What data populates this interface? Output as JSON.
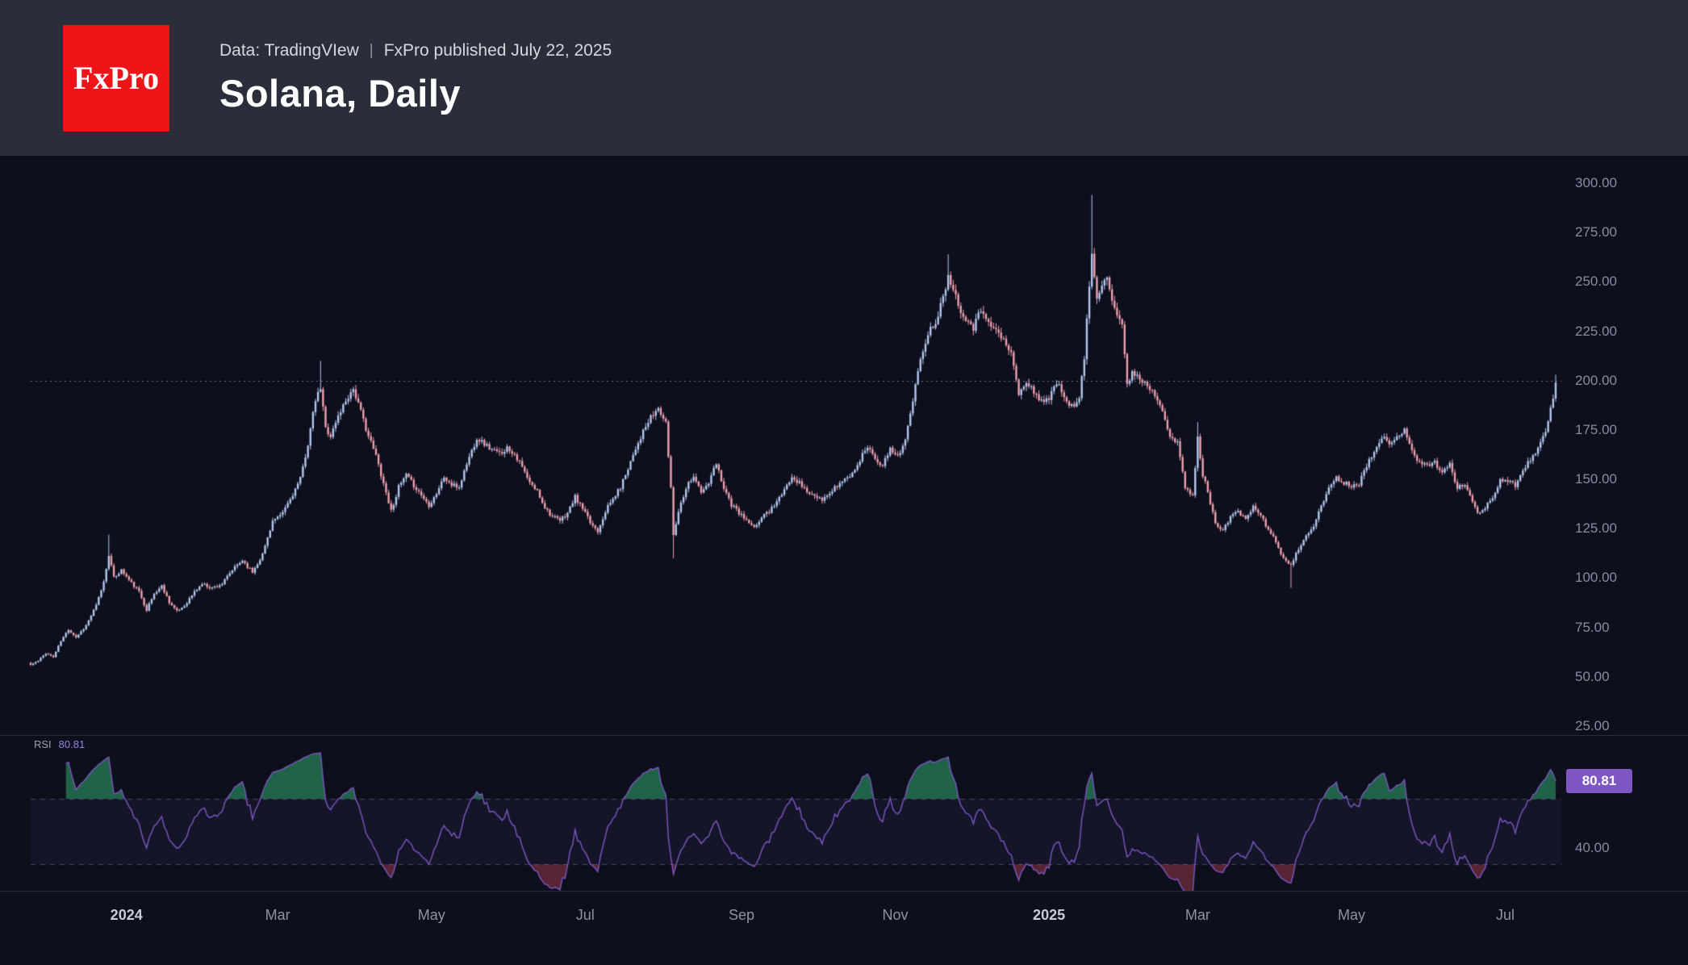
{
  "header": {
    "logo_text": "FxPro",
    "source": "Data: TradingVIew",
    "divider": "|",
    "published": "FxPro published July 22, 2025",
    "title": "Solana, Daily"
  },
  "colors": {
    "background": "#0d0f1c",
    "header_bg": "#2a2e3b",
    "logo_bg": "#f01419",
    "candle_up": "#b4c7ef",
    "candle_down": "#ef9fae",
    "rsi_line": "#7e57c2",
    "rsi_badge_bg": "#7e57c2",
    "axis_text": "#868da0",
    "current_price_line": "#94a0c4",
    "overbought_fill": "#32aa6e",
    "oversold_fill": "#e65064",
    "band_fill": "#7c62d4",
    "band_line": "#6e7494"
  },
  "price_axis": {
    "current_price_line_value": 200,
    "ticks": [
      {
        "label": "300.00",
        "value": 300
      },
      {
        "label": "275.00",
        "value": 275
      },
      {
        "label": "250.00",
        "value": 250
      },
      {
        "label": "225.00",
        "value": 225
      },
      {
        "label": "200.00",
        "value": 200
      },
      {
        "label": "175.00",
        "value": 175
      },
      {
        "label": "150.00",
        "value": 150
      },
      {
        "label": "125.00",
        "value": 125
      },
      {
        "label": "100.00",
        "value": 100
      },
      {
        "label": "75.00",
        "value": 75
      },
      {
        "label": "50.00",
        "value": 50
      },
      {
        "label": "25.00",
        "value": 25
      }
    ]
  },
  "time_axis": {
    "labels": [
      {
        "label": "2024",
        "day": 38,
        "year": true
      },
      {
        "label": "Mar",
        "day": 98,
        "year": false
      },
      {
        "label": "May",
        "day": 159,
        "year": false
      },
      {
        "label": "Jul",
        "day": 220,
        "year": false
      },
      {
        "label": "Sep",
        "day": 282,
        "year": false
      },
      {
        "label": "Nov",
        "day": 343,
        "year": false
      },
      {
        "label": "2025",
        "day": 404,
        "year": true
      },
      {
        "label": "Mar",
        "day": 463,
        "year": false
      },
      {
        "label": "May",
        "day": 524,
        "year": false
      },
      {
        "label": "Jul",
        "day": 585,
        "year": false
      }
    ]
  },
  "chart_data": {
    "type": "candlestick",
    "title": "Solana, Daily",
    "symbol": "Solana",
    "timeframe": "Daily",
    "x_unit": "days from first visible candle (day 38 = Jan 1 2024)",
    "days_visible": 606,
    "ylim": [
      20,
      314
    ],
    "grid": false,
    "legend_position": "none",
    "close_anchors": [
      [
        0,
        56
      ],
      [
        3,
        58
      ],
      [
        6,
        62
      ],
      [
        9,
        60
      ],
      [
        12,
        68
      ],
      [
        15,
        74
      ],
      [
        18,
        70
      ],
      [
        22,
        76
      ],
      [
        26,
        86
      ],
      [
        29,
        98
      ],
      [
        31,
        112
      ],
      [
        33,
        100
      ],
      [
        36,
        104
      ],
      [
        39,
        99
      ],
      [
        43,
        93
      ],
      [
        46,
        84
      ],
      [
        49,
        92
      ],
      [
        52,
        96
      ],
      [
        55,
        88
      ],
      [
        58,
        83
      ],
      [
        61,
        86
      ],
      [
        65,
        93
      ],
      [
        68,
        97
      ],
      [
        72,
        95
      ],
      [
        76,
        97
      ],
      [
        80,
        104
      ],
      [
        84,
        109
      ],
      [
        88,
        103
      ],
      [
        92,
        112
      ],
      [
        96,
        129
      ],
      [
        99,
        131
      ],
      [
        103,
        140
      ],
      [
        107,
        150
      ],
      [
        110,
        168
      ],
      [
        113,
        190
      ],
      [
        115,
        196
      ],
      [
        117,
        176
      ],
      [
        119,
        172
      ],
      [
        122,
        182
      ],
      [
        125,
        190
      ],
      [
        128,
        196
      ],
      [
        131,
        184
      ],
      [
        134,
        172
      ],
      [
        137,
        162
      ],
      [
        140,
        148
      ],
      [
        143,
        134
      ],
      [
        146,
        146
      ],
      [
        149,
        152
      ],
      [
        152,
        147
      ],
      [
        155,
        142
      ],
      [
        158,
        137
      ],
      [
        161,
        143
      ],
      [
        164,
        151
      ],
      [
        167,
        147
      ],
      [
        170,
        146
      ],
      [
        173,
        158
      ],
      [
        177,
        171
      ],
      [
        180,
        168
      ],
      [
        183,
        165
      ],
      [
        186,
        163
      ],
      [
        189,
        166
      ],
      [
        192,
        163
      ],
      [
        195,
        156
      ],
      [
        198,
        148
      ],
      [
        201,
        144
      ],
      [
        204,
        136
      ],
      [
        207,
        131
      ],
      [
        210,
        129
      ],
      [
        213,
        133
      ],
      [
        216,
        141
      ],
      [
        219,
        135
      ],
      [
        222,
        128
      ],
      [
        225,
        124
      ],
      [
        228,
        134
      ],
      [
        231,
        140
      ],
      [
        234,
        146
      ],
      [
        237,
        156
      ],
      [
        240,
        166
      ],
      [
        243,
        174
      ],
      [
        246,
        181
      ],
      [
        249,
        186
      ],
      [
        252,
        178
      ],
      [
        254,
        146
      ],
      [
        255,
        122
      ],
      [
        257,
        134
      ],
      [
        260,
        146
      ],
      [
        263,
        152
      ],
      [
        266,
        143
      ],
      [
        269,
        148
      ],
      [
        272,
        158
      ],
      [
        275,
        146
      ],
      [
        278,
        137
      ],
      [
        281,
        133
      ],
      [
        284,
        129
      ],
      [
        287,
        125
      ],
      [
        290,
        131
      ],
      [
        293,
        134
      ],
      [
        296,
        139
      ],
      [
        299,
        144
      ],
      [
        302,
        152
      ],
      [
        305,
        148
      ],
      [
        308,
        144
      ],
      [
        311,
        141
      ],
      [
        314,
        139
      ],
      [
        317,
        143
      ],
      [
        320,
        147
      ],
      [
        323,
        150
      ],
      [
        326,
        153
      ],
      [
        329,
        160
      ],
      [
        332,
        167
      ],
      [
        335,
        161
      ],
      [
        338,
        157
      ],
      [
        341,
        165
      ],
      [
        344,
        162
      ],
      [
        347,
        170
      ],
      [
        350,
        189
      ],
      [
        353,
        212
      ],
      [
        356,
        224
      ],
      [
        359,
        230
      ],
      [
        362,
        242
      ],
      [
        364,
        254
      ],
      [
        366,
        247
      ],
      [
        368,
        238
      ],
      [
        371,
        232
      ],
      [
        374,
        227
      ],
      [
        377,
        236
      ],
      [
        380,
        231
      ],
      [
        383,
        225
      ],
      [
        386,
        220
      ],
      [
        389,
        214
      ],
      [
        392,
        193
      ],
      [
        395,
        199
      ],
      [
        398,
        194
      ],
      [
        401,
        190
      ],
      [
        404,
        191
      ],
      [
        407,
        199
      ],
      [
        410,
        192
      ],
      [
        413,
        187
      ],
      [
        416,
        190
      ],
      [
        418,
        212
      ],
      [
        420,
        248
      ],
      [
        421,
        264
      ],
      [
        423,
        242
      ],
      [
        425,
        250
      ],
      [
        427,
        254
      ],
      [
        429,
        240
      ],
      [
        431,
        234
      ],
      [
        433,
        228
      ],
      [
        435,
        197
      ],
      [
        437,
        205
      ],
      [
        440,
        201
      ],
      [
        443,
        198
      ],
      [
        446,
        193
      ],
      [
        449,
        186
      ],
      [
        452,
        172
      ],
      [
        455,
        168
      ],
      [
        458,
        146
      ],
      [
        461,
        141
      ],
      [
        463,
        171
      ],
      [
        465,
        152
      ],
      [
        467,
        144
      ],
      [
        470,
        127
      ],
      [
        473,
        125
      ],
      [
        476,
        131
      ],
      [
        479,
        134
      ],
      [
        482,
        129
      ],
      [
        485,
        137
      ],
      [
        488,
        131
      ],
      [
        491,
        125
      ],
      [
        494,
        118
      ],
      [
        497,
        110
      ],
      [
        500,
        106
      ],
      [
        503,
        115
      ],
      [
        506,
        121
      ],
      [
        509,
        127
      ],
      [
        512,
        136
      ],
      [
        515,
        146
      ],
      [
        518,
        151
      ],
      [
        521,
        148
      ],
      [
        524,
        147
      ],
      [
        527,
        148
      ],
      [
        530,
        157
      ],
      [
        533,
        165
      ],
      [
        536,
        172
      ],
      [
        539,
        167
      ],
      [
        542,
        171
      ],
      [
        545,
        176
      ],
      [
        548,
        165
      ],
      [
        551,
        158
      ],
      [
        554,
        157
      ],
      [
        557,
        159
      ],
      [
        560,
        153
      ],
      [
        563,
        158
      ],
      [
        566,
        145
      ],
      [
        569,
        148
      ],
      [
        572,
        139
      ],
      [
        574,
        132
      ],
      [
        577,
        136
      ],
      [
        580,
        141
      ],
      [
        583,
        150
      ],
      [
        586,
        149
      ],
      [
        589,
        147
      ],
      [
        592,
        155
      ],
      [
        595,
        160
      ],
      [
        598,
        166
      ],
      [
        601,
        174
      ],
      [
        603,
        185
      ],
      [
        605,
        199
      ]
    ],
    "extreme_wicks": [
      [
        31,
        "high",
        122
      ],
      [
        115,
        "high",
        210
      ],
      [
        255,
        "low",
        110
      ],
      [
        364,
        "high",
        264
      ],
      [
        421,
        "high",
        294
      ],
      [
        463,
        "high",
        179
      ],
      [
        500,
        "low",
        95
      ],
      [
        605,
        "high",
        203
      ]
    ],
    "rsi": {
      "label": "RSI",
      "period": 14,
      "current": "80.81",
      "current_value": 80.81,
      "upper_band": 70,
      "lower_band": 30,
      "axis_tick": "40.00",
      "axis_tick_value": 40
    }
  }
}
